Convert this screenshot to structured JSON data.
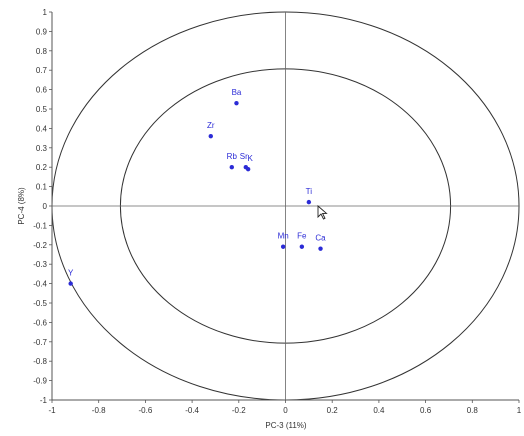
{
  "chart_data": {
    "type": "scatter",
    "title": "",
    "xlabel": "PC-3 (11%)",
    "ylabel": "PC-4 (8%)",
    "xlim": [
      -1,
      1
    ],
    "ylim": [
      -1,
      1
    ],
    "grid": false,
    "x_ticks": [
      "-1",
      "-0.8",
      "-0.6",
      "-0.4",
      "-0.2",
      "0",
      "0.2",
      "0.4",
      "0.6",
      "0.8",
      "1"
    ],
    "x_tick_values": [
      -1,
      -0.8,
      -0.6,
      -0.4,
      -0.2,
      0,
      0.2,
      0.4,
      0.6,
      0.8,
      1
    ],
    "y_ticks": [
      "1",
      "0.9",
      "0.8",
      "0.7",
      "0.6",
      "0.5",
      "0.4",
      "0.3",
      "0.2",
      "0.1",
      "0",
      "-0.1",
      "-0.2",
      "-0.3",
      "-0.4",
      "-0.5",
      "-0.6",
      "-0.7",
      "-0.8",
      "-0.9",
      "-1"
    ],
    "y_tick_values": [
      1,
      0.9,
      0.8,
      0.7,
      0.6,
      0.5,
      0.4,
      0.3,
      0.2,
      0.1,
      0,
      -0.1,
      -0.2,
      -0.3,
      -0.4,
      -0.5,
      -0.6,
      -0.7,
      -0.8,
      -0.9,
      -1
    ],
    "reference_circles": [
      1,
      0.707
    ],
    "point_color": "#2b2bd6",
    "points": [
      {
        "label": "Ba",
        "x": -0.21,
        "y": 0.53
      },
      {
        "label": "Zr",
        "x": -0.32,
        "y": 0.36
      },
      {
        "label": "Rb",
        "x": -0.23,
        "y": 0.2
      },
      {
        "label": "Sr",
        "x": -0.17,
        "y": 0.2
      },
      {
        "label": "K",
        "x": -0.16,
        "y": 0.19
      },
      {
        "label": "Ti",
        "x": 0.1,
        "y": 0.02
      },
      {
        "label": "Mn",
        "x": -0.01,
        "y": -0.21
      },
      {
        "label": "Fe",
        "x": 0.07,
        "y": -0.21
      },
      {
        "label": "Ca",
        "x": 0.15,
        "y": -0.22
      },
      {
        "label": "Y",
        "x": -0.92,
        "y": -0.4
      }
    ]
  }
}
